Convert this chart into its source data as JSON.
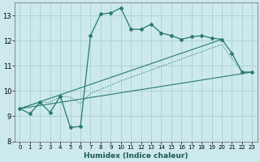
{
  "title": "",
  "xlabel": "Humidex (Indice chaleur)",
  "ylabel": "",
  "xlim": [
    -0.5,
    23.5
  ],
  "ylim": [
    8,
    13.5
  ],
  "yticks": [
    8,
    9,
    10,
    11,
    12,
    13
  ],
  "xticks": [
    0,
    1,
    2,
    3,
    4,
    5,
    6,
    7,
    8,
    9,
    10,
    11,
    12,
    13,
    14,
    15,
    16,
    17,
    18,
    19,
    20,
    21,
    22,
    23
  ],
  "bg_color": "#cce9ed",
  "grid_color": "#aacfd6",
  "line_color": "#2a7a6e",
  "line1_x": [
    0,
    1,
    2,
    3,
    4,
    5,
    6,
    7,
    8,
    9,
    10,
    11,
    12,
    13,
    14,
    15,
    16,
    17,
    18,
    19,
    20,
    21,
    22,
    23
  ],
  "line1_y": [
    9.3,
    9.1,
    9.55,
    9.15,
    9.8,
    8.55,
    8.6,
    12.2,
    13.05,
    13.1,
    13.3,
    12.45,
    12.45,
    12.65,
    12.3,
    12.2,
    12.05,
    12.15,
    12.2,
    12.1,
    12.05,
    11.5,
    10.75,
    10.75
  ],
  "line2_x": [
    0,
    20
  ],
  "line2_y": [
    9.3,
    12.05
  ],
  "line3_x": [
    0,
    23
  ],
  "line3_y": [
    9.3,
    10.75
  ],
  "line4_x": [
    0,
    2,
    3,
    4,
    5,
    6,
    7,
    10,
    20,
    22,
    23
  ],
  "line4_y": [
    9.3,
    9.55,
    9.55,
    9.8,
    9.75,
    9.5,
    9.9,
    10.4,
    11.85,
    10.75,
    10.75
  ]
}
